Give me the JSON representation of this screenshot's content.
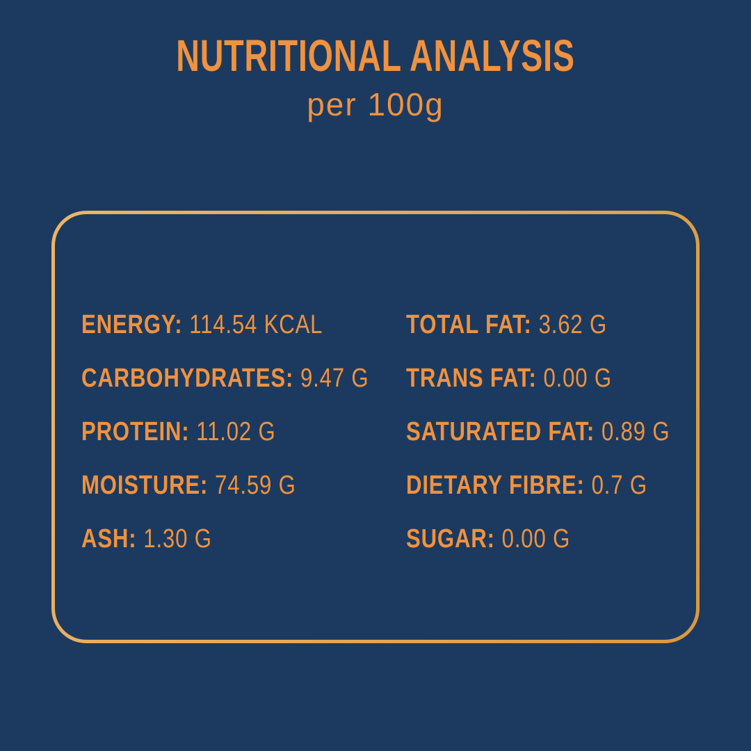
{
  "theme": {
    "background": "#1C3A5F",
    "accent": "#F0923F",
    "border_gold_1": "#ECB566",
    "border_gold_2": "#E2A852",
    "border_gold_3": "#D89940"
  },
  "header": {
    "title": "NUTRITIONAL ANALYSIS",
    "subtitle": "per 100g"
  },
  "panel": {
    "left": [
      {
        "label": "ENERGY:",
        "value": "114.54 KCAL"
      },
      {
        "label": "CARBOHYDRATES:",
        "value": "9.47 G"
      },
      {
        "label": "PROTEIN:",
        "value": "11.02 G"
      },
      {
        "label": "MOISTURE:",
        "value": "74.59 G"
      },
      {
        "label": "ASH:",
        "value": "1.30 G"
      }
    ],
    "right": [
      {
        "label": "TOTAL FAT:",
        "value": "3.62 G"
      },
      {
        "label": "TRANS FAT:",
        "value": "0.00 G"
      },
      {
        "label": "SATURATED FAT:",
        "value": "0.89 G"
      },
      {
        "label": "DIETARY FIBRE:",
        "value": "0.7 G"
      },
      {
        "label": "SUGAR:",
        "value": "0.00 G"
      }
    ]
  }
}
